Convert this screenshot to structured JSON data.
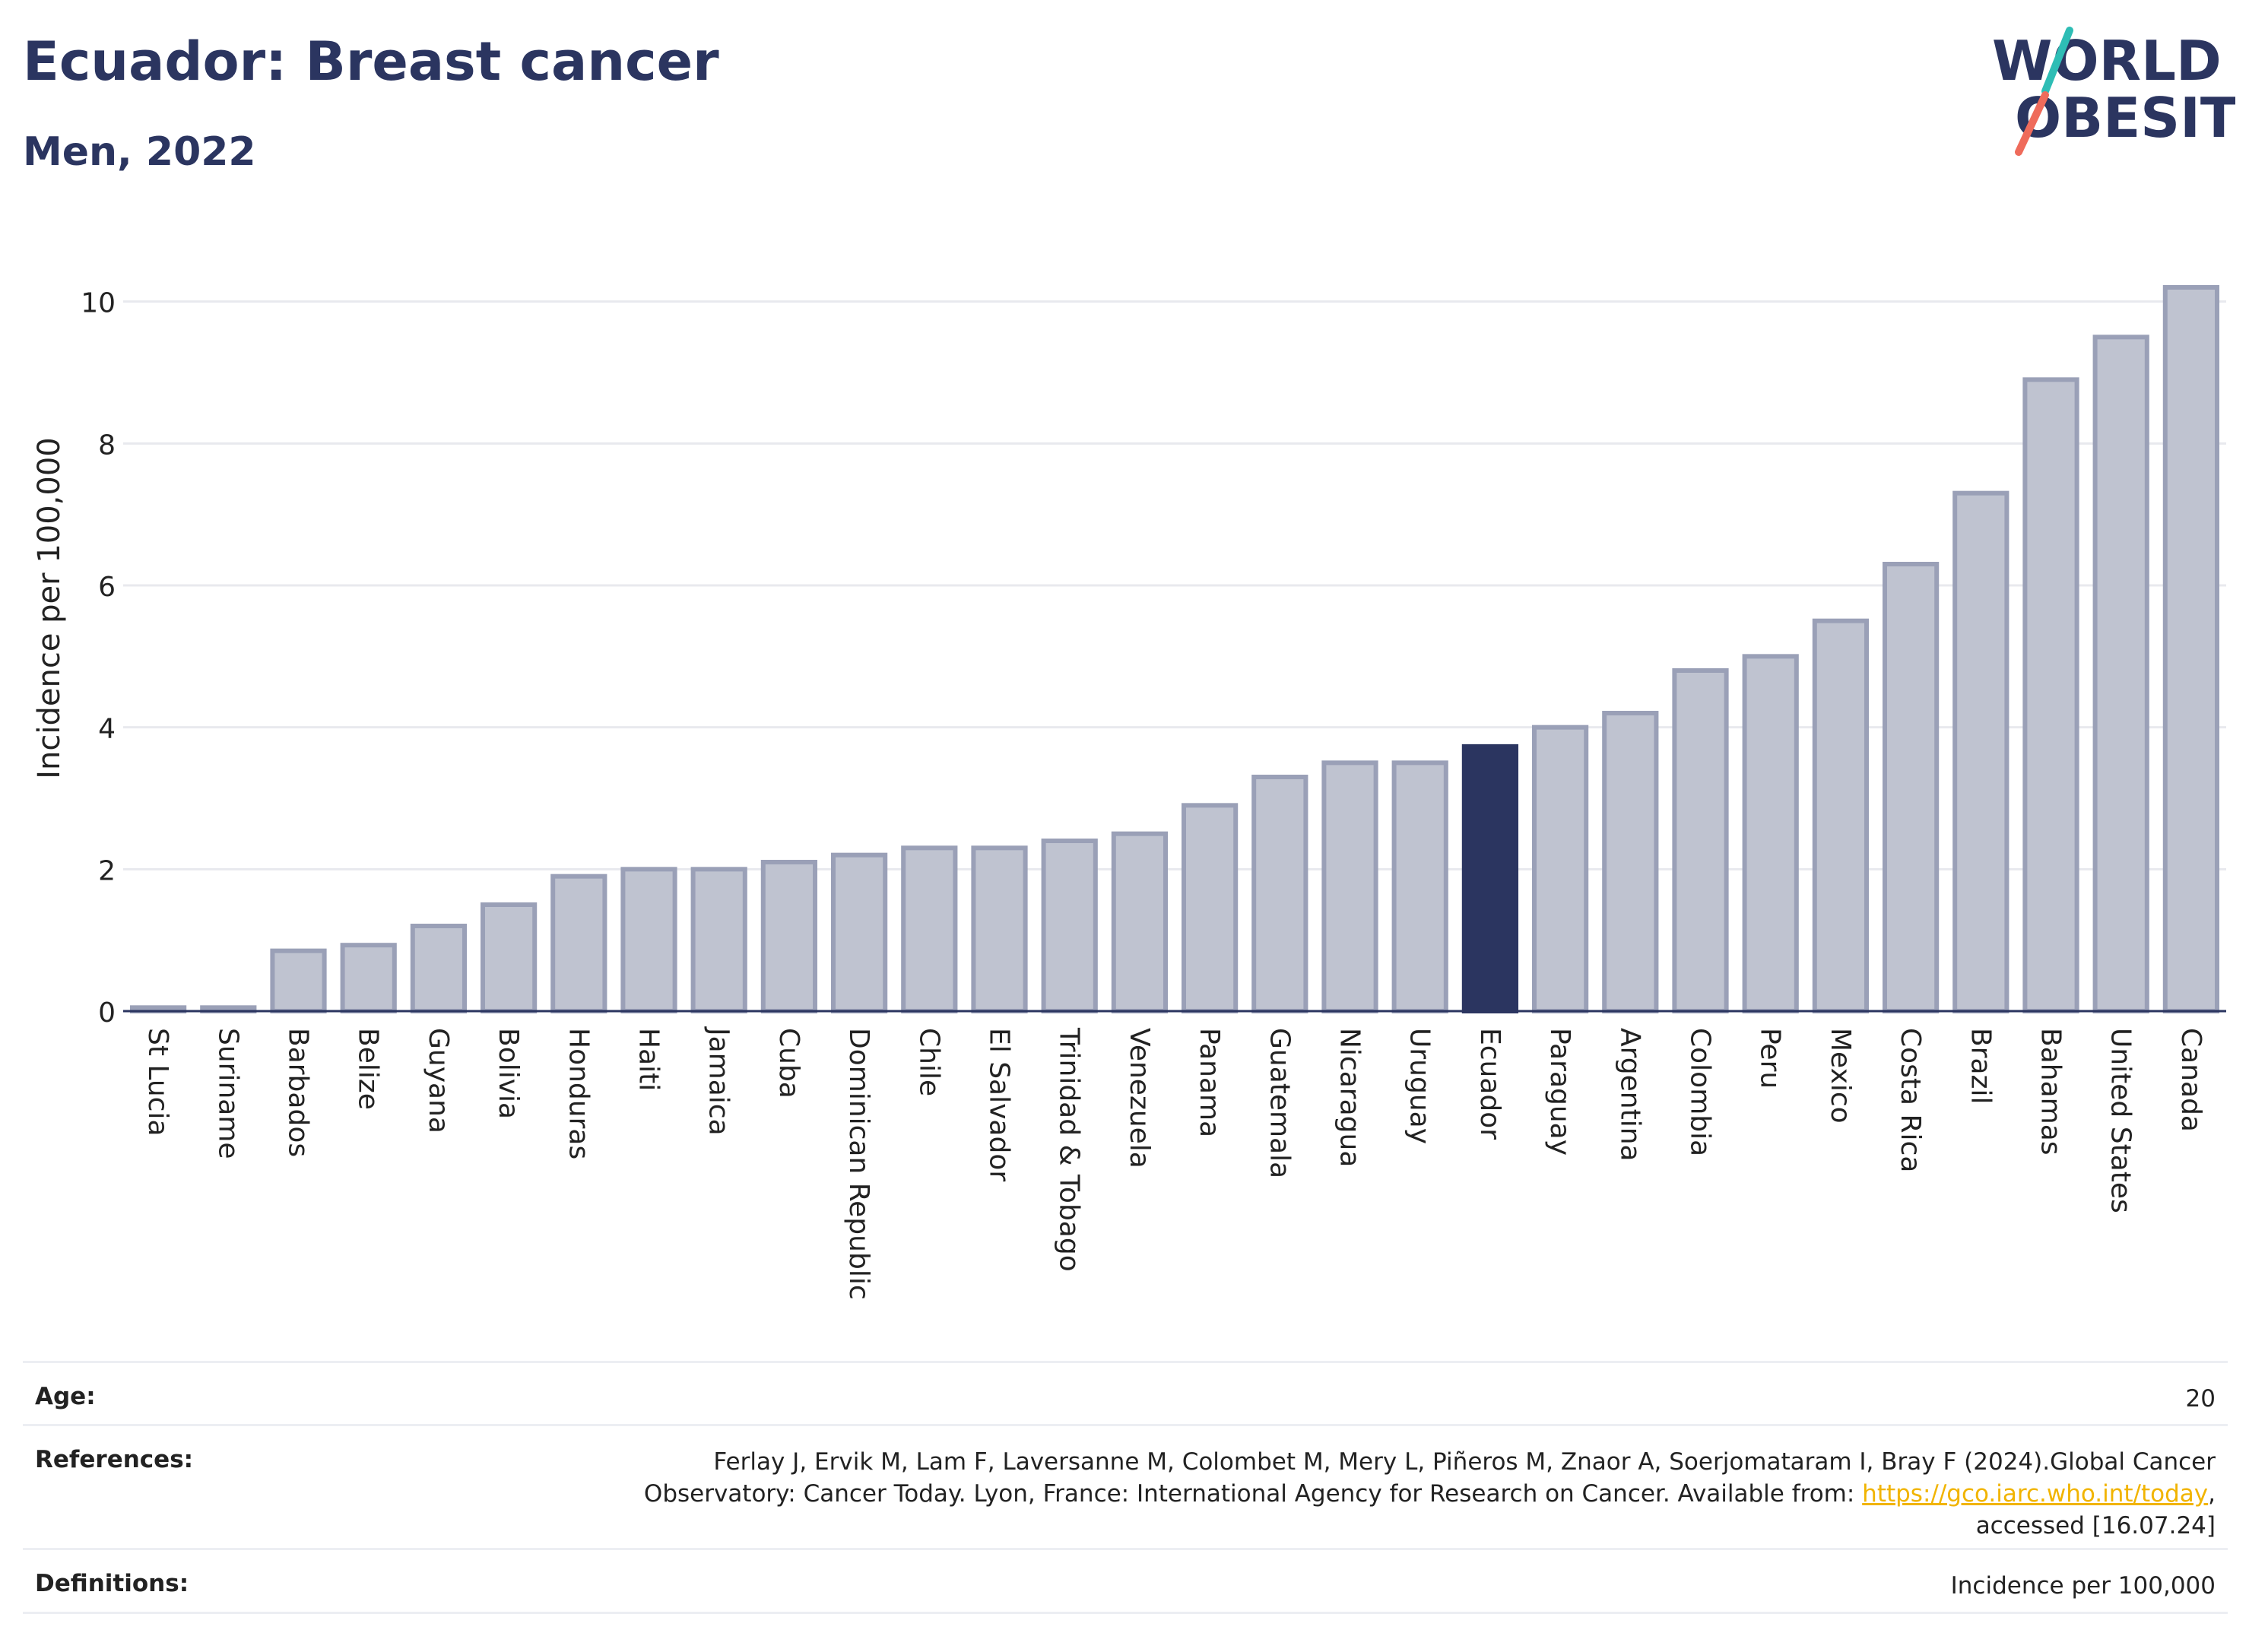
{
  "header": {
    "title": "Ecuador: Breast cancer",
    "subtitle": "Men, 2022",
    "logo_line1": "WORLD",
    "logo_line2": "OBESITY"
  },
  "colors": {
    "bar_fill": "#bfc3d0",
    "bar_stroke": "#9aa0b7",
    "highlight": "#2b3560",
    "title": "#2b3560",
    "grid": "#e8e9ee",
    "logo_teal": "#2ebdb5",
    "logo_red": "#ef6b5b",
    "link": "#f1b400"
  },
  "chart_data": {
    "type": "bar",
    "ylabel": "Incidence per 100,000",
    "xlabel": "",
    "ylim": [
      0,
      10.5
    ],
    "yticks": [
      0,
      2,
      4,
      6,
      8,
      10
    ],
    "grid": true,
    "highlight": "Ecuador",
    "categories": [
      "St Lucia",
      "Suriname",
      "Barbados",
      "Belize",
      "Guyana",
      "Bolivia",
      "Honduras",
      "Haiti",
      "Jamaica",
      "Cuba",
      "Dominican Republic",
      "Chile",
      "El Salvador",
      "Trinidad & Tobago",
      "Venezuela",
      "Panama",
      "Guatemala",
      "Nicaragua",
      "Uruguay",
      "Ecuador",
      "Paraguay",
      "Argentina",
      "Colombia",
      "Peru",
      "Mexico",
      "Costa Rica",
      "Brazil",
      "Bahamas",
      "United States",
      "Canada"
    ],
    "values": [
      0.05,
      0.05,
      0.85,
      0.93,
      1.2,
      1.5,
      1.9,
      2.0,
      2.0,
      2.1,
      2.2,
      2.3,
      2.3,
      2.4,
      2.5,
      2.9,
      3.3,
      3.5,
      3.5,
      3.73,
      4.0,
      4.2,
      4.8,
      5.0,
      5.5,
      6.3,
      7.3,
      8.9,
      9.5,
      10.2
    ]
  },
  "info": {
    "age_label": "Age:",
    "age_value": "20",
    "references_label": "References:",
    "references_line1": "Ferlay J, Ervik M, Lam F, Laversanne M, Colombet M, Mery L, Piñeros M, Znaor A, Soerjomataram I, Bray F (2024).Global Cancer",
    "references_line2_pre": "Observatory: Cancer Today. Lyon, France: International Agency for Research on Cancer. Available from: ",
    "references_link": "https://gco.iarc.who.int/today",
    "references_line2_post": ",",
    "references_line3": "accessed [16.07.24]",
    "definitions_label": "Definitions:",
    "definitions_value": "Incidence per 100,000"
  }
}
